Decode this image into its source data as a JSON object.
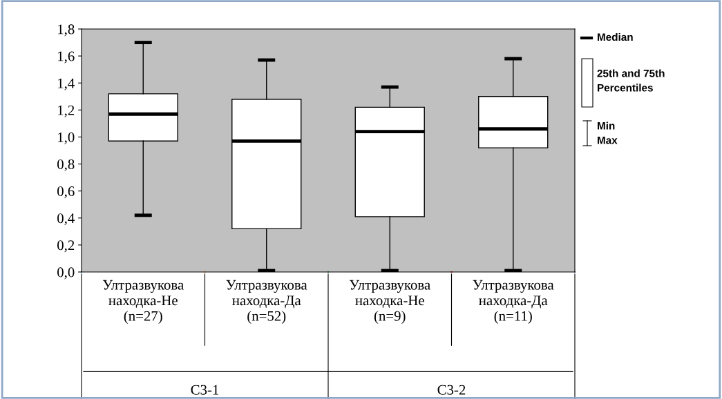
{
  "chart_data": {
    "type": "box",
    "categories": [
      "Ултразвукова\nнаходка-Не\n(n=27)",
      "Ултразвукова\nнаходка-Да\n(n=52)",
      "Ултразвукова\nнаходка-Не\n(n=9)",
      "Ултразвукова\nнаходка-Да\n(n=11)"
    ],
    "boxes": [
      {
        "low": 0.42,
        "q1": 0.97,
        "median": 1.17,
        "q3": 1.32,
        "high": 1.7
      },
      {
        "low": 0.01,
        "q1": 0.32,
        "median": 0.97,
        "q3": 1.28,
        "high": 1.57
      },
      {
        "low": 0.01,
        "q1": 0.41,
        "median": 1.04,
        "q3": 1.22,
        "high": 1.37
      },
      {
        "low": 0.01,
        "q1": 0.92,
        "median": 1.06,
        "q3": 1.3,
        "high": 1.58
      }
    ],
    "ylim": [
      0,
      1.8
    ],
    "yticks": [
      {
        "value": 0,
        "label": "0,0"
      },
      {
        "value": 0.2,
        "label": "0,2"
      },
      {
        "value": 0.4,
        "label": "0,4"
      },
      {
        "value": 0.6,
        "label": "0,6"
      },
      {
        "value": 0.8,
        "label": "0,8"
      },
      {
        "value": 1.0,
        "label": "1,0"
      },
      {
        "value": 1.2,
        "label": "1,2"
      },
      {
        "value": 1.4,
        "label": "1,4"
      },
      {
        "value": 1.6,
        "label": "1,6"
      },
      {
        "value": 1.8,
        "label": "1,8"
      }
    ],
    "annotations": [
      "C3-1",
      "C3-2",
      "Median",
      "25th and 75th\nPercentiles",
      "Min\nMax"
    ],
    "grid": false
  }
}
